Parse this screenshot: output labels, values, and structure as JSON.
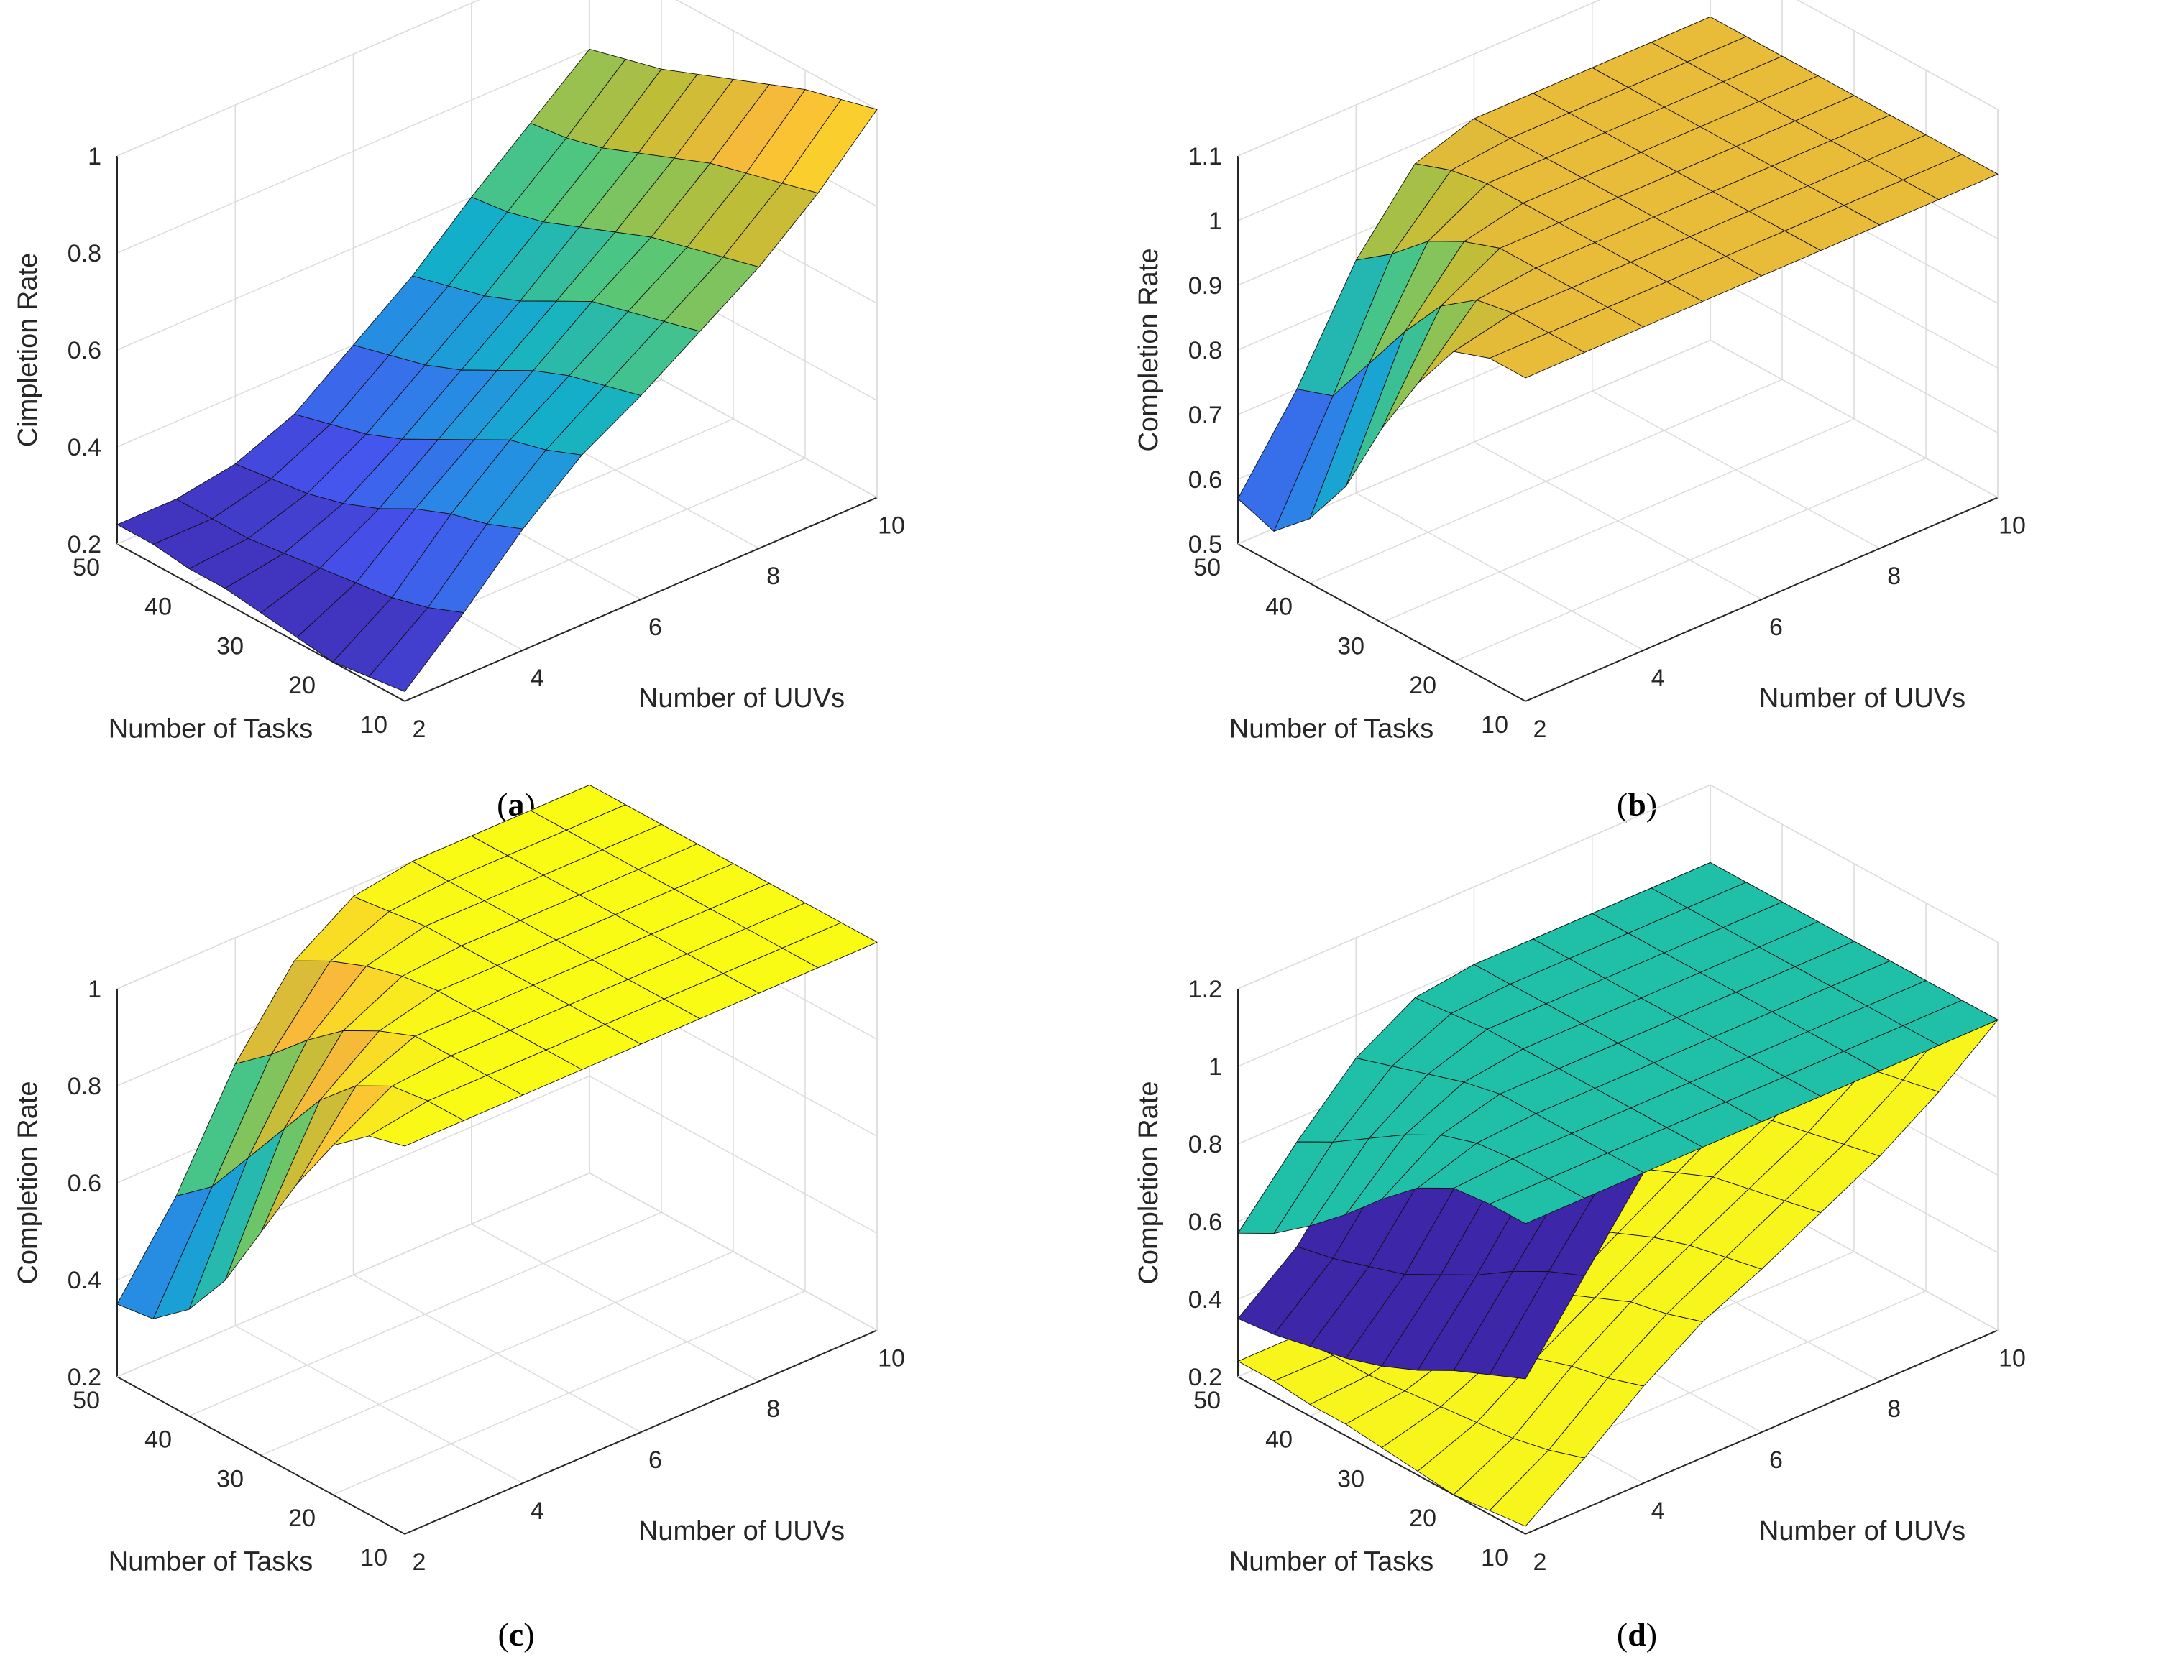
{
  "chart_data": [
    {
      "id": "a",
      "type": "surface",
      "caption": {
        "open": "(",
        "letter": "a",
        "close": ")"
      },
      "xlabel": "Number of UUVs",
      "ylabel": "Number of Tasks",
      "zlabel": "Cimpletion Rate",
      "xlim": [
        2,
        10
      ],
      "ylim": [
        10,
        50
      ],
      "zlim": [
        0.2,
        1.0
      ],
      "xticks": [
        2,
        4,
        6,
        8,
        10
      ],
      "yticks": [
        10,
        20,
        30,
        40,
        50
      ],
      "zticks": [
        "0.2",
        "0.4",
        "0.6",
        "0.8",
        "1"
      ],
      "grid": true,
      "x": [
        2,
        3,
        4,
        5,
        6,
        7,
        8,
        9,
        10
      ],
      "y": [
        10,
        15,
        20,
        25,
        30,
        35,
        40,
        45,
        50
      ],
      "surfaces": [
        {
          "name": "completion",
          "colormap": "parula",
          "z": [
            [
              0.22,
              0.33,
              0.45,
              0.55,
              0.62,
              0.7,
              0.78,
              0.88,
              1.0
            ],
            [
              0.21,
              0.3,
              0.42,
              0.52,
              0.6,
              0.68,
              0.76,
              0.86,
              0.98
            ],
            [
              0.2,
              0.28,
              0.4,
              0.5,
              0.58,
              0.66,
              0.74,
              0.84,
              0.96
            ],
            [
              0.21,
              0.27,
              0.37,
              0.46,
              0.55,
              0.64,
              0.72,
              0.82,
              0.93
            ],
            [
              0.22,
              0.26,
              0.33,
              0.42,
              0.51,
              0.6,
              0.69,
              0.79,
              0.9
            ],
            [
              0.23,
              0.25,
              0.3,
              0.38,
              0.47,
              0.56,
              0.66,
              0.76,
              0.87
            ],
            [
              0.23,
              0.24,
              0.28,
              0.35,
              0.44,
              0.53,
              0.63,
              0.73,
              0.84
            ],
            [
              0.24,
              0.24,
              0.27,
              0.33,
              0.42,
              0.51,
              0.61,
              0.71,
              0.82
            ],
            [
              0.24,
              0.24,
              0.26,
              0.31,
              0.4,
              0.49,
              0.6,
              0.7,
              0.8
            ]
          ]
        }
      ]
    },
    {
      "id": "b",
      "type": "surface",
      "caption": {
        "open": "(",
        "letter": "b",
        "close": ")"
      },
      "xlabel": "Number of UUVs",
      "ylabel": "Number of Tasks",
      "zlabel": "Completion Rate",
      "xlim": [
        2,
        10
      ],
      "ylim": [
        10,
        50
      ],
      "zlim": [
        0.5,
        1.1
      ],
      "xticks": [
        2,
        4,
        6,
        8,
        10
      ],
      "yticks": [
        10,
        20,
        30,
        40,
        50
      ],
      "zticks": [
        "0.5",
        "0.6",
        "0.7",
        "0.8",
        "0.9",
        "1",
        "1.1"
      ],
      "grid": true,
      "x": [
        2,
        3,
        4,
        5,
        6,
        7,
        8,
        9,
        10
      ],
      "y": [
        10,
        15,
        20,
        25,
        30,
        35,
        40,
        45,
        50
      ],
      "surfaces": [
        {
          "name": "completion",
          "colormap": "parula",
          "z": [
            [
              1.0,
              1.0,
              1.0,
              1.0,
              1.0,
              1.0,
              1.0,
              1.0,
              1.0
            ],
            [
              1.0,
              1.0,
              1.0,
              1.0,
              1.0,
              1.0,
              1.0,
              1.0,
              1.0
            ],
            [
              0.98,
              1.0,
              1.0,
              1.0,
              1.0,
              1.0,
              1.0,
              1.0,
              1.0
            ],
            [
              0.9,
              0.99,
              1.0,
              1.0,
              1.0,
              1.0,
              1.0,
              1.0,
              1.0
            ],
            [
              0.8,
              0.95,
              1.0,
              1.0,
              1.0,
              1.0,
              1.0,
              1.0,
              1.0
            ],
            [
              0.68,
              0.88,
              0.98,
              1.0,
              1.0,
              1.0,
              1.0,
              1.0,
              1.0
            ],
            [
              0.6,
              0.8,
              0.95,
              1.0,
              1.0,
              1.0,
              1.0,
              1.0,
              1.0
            ],
            [
              0.55,
              0.72,
              0.9,
              0.99,
              1.0,
              1.0,
              1.0,
              1.0,
              1.0
            ],
            [
              0.57,
              0.7,
              0.86,
              0.97,
              1.0,
              1.0,
              1.0,
              1.0,
              1.0
            ]
          ]
        }
      ]
    },
    {
      "id": "c",
      "type": "surface",
      "caption": {
        "open": "(",
        "letter": "c",
        "close": ")"
      },
      "xlabel": "Number of UUVs",
      "ylabel": "Number of Tasks",
      "zlabel": "Completion Rate",
      "xlim": [
        2,
        10
      ],
      "ylim": [
        10,
        50
      ],
      "zlim": [
        0.2,
        1.0
      ],
      "xticks": [
        2,
        4,
        6,
        8,
        10
      ],
      "yticks": [
        10,
        20,
        30,
        40,
        50
      ],
      "zticks": [
        "0.2",
        "0.4",
        "0.6",
        "0.8",
        "1"
      ],
      "grid": true,
      "x": [
        2,
        3,
        4,
        5,
        6,
        7,
        8,
        9,
        10
      ],
      "y": [
        10,
        15,
        20,
        25,
        30,
        35,
        40,
        45,
        50
      ],
      "surfaces": [
        {
          "name": "completion",
          "colormap": "parula",
          "z": [
            [
              1.0,
              1.0,
              1.0,
              1.0,
              1.0,
              1.0,
              1.0,
              1.0,
              1.0
            ],
            [
              0.98,
              1.0,
              1.0,
              1.0,
              1.0,
              1.0,
              1.0,
              1.0,
              1.0
            ],
            [
              0.92,
              0.99,
              1.0,
              1.0,
              1.0,
              1.0,
              1.0,
              1.0,
              1.0
            ],
            [
              0.8,
              0.95,
              1.0,
              1.0,
              1.0,
              1.0,
              1.0,
              1.0,
              1.0
            ],
            [
              0.66,
              0.88,
              0.97,
              1.0,
              1.0,
              1.0,
              1.0,
              1.0,
              1.0
            ],
            [
              0.52,
              0.78,
              0.93,
              0.99,
              1.0,
              1.0,
              1.0,
              1.0,
              1.0
            ],
            [
              0.42,
              0.68,
              0.87,
              0.97,
              1.0,
              1.0,
              1.0,
              1.0,
              1.0
            ],
            [
              0.36,
              0.58,
              0.8,
              0.94,
              0.99,
              1.0,
              1.0,
              1.0,
              1.0
            ],
            [
              0.35,
              0.52,
              0.74,
              0.9,
              0.98,
              1.0,
              1.0,
              1.0,
              1.0
            ]
          ]
        }
      ]
    },
    {
      "id": "d",
      "type": "surface",
      "caption": {
        "open": "(",
        "letter": "d",
        "close": ")"
      },
      "xlabel": "Number of UUVs",
      "ylabel": "Number of Tasks",
      "zlabel": "Completion Rate",
      "xlim": [
        2,
        10
      ],
      "ylim": [
        10,
        50
      ],
      "zlim": [
        0.2,
        1.2
      ],
      "xticks": [
        2,
        4,
        6,
        8,
        10
      ],
      "yticks": [
        10,
        20,
        30,
        40,
        50
      ],
      "zticks": [
        "0.2",
        "0.4",
        "0.6",
        "0.8",
        "1",
        "1.2"
      ],
      "grid": true,
      "x": [
        2,
        3,
        4,
        5,
        6,
        7,
        8,
        9,
        10
      ],
      "y": [
        10,
        15,
        20,
        25,
        30,
        35,
        40,
        45,
        50
      ],
      "surfaces": [
        {
          "name": "yellow-surface",
          "color": "#f8f51c",
          "z": [
            [
              0.22,
              0.33,
              0.45,
              0.55,
              0.62,
              0.7,
              0.78,
              0.88,
              1.0
            ],
            [
              0.21,
              0.3,
              0.42,
              0.52,
              0.6,
              0.68,
              0.76,
              0.86,
              0.98
            ],
            [
              0.2,
              0.28,
              0.4,
              0.5,
              0.58,
              0.66,
              0.74,
              0.84,
              0.96
            ],
            [
              0.21,
              0.27,
              0.37,
              0.46,
              0.55,
              0.64,
              0.72,
              0.82,
              0.93
            ],
            [
              0.22,
              0.26,
              0.33,
              0.42,
              0.51,
              0.6,
              0.69,
              0.79,
              0.9
            ],
            [
              0.23,
              0.25,
              0.3,
              0.38,
              0.47,
              0.56,
              0.66,
              0.76,
              0.87
            ],
            [
              0.23,
              0.24,
              0.28,
              0.35,
              0.44,
              0.53,
              0.63,
              0.73,
              0.84
            ],
            [
              0.24,
              0.24,
              0.27,
              0.33,
              0.42,
              0.51,
              0.61,
              0.71,
              0.82
            ],
            [
              0.24,
              0.24,
              0.26,
              0.31,
              0.4,
              0.49,
              0.6,
              0.7,
              0.8
            ]
          ]
        },
        {
          "name": "purple-surface",
          "color": "#3e26a8",
          "z": [
            [
              0.6,
              0.8,
              1.0,
              1.0,
              1.0,
              1.0,
              1.0,
              1.0,
              1.0
            ],
            [
              0.56,
              0.76,
              0.95,
              1.0,
              1.0,
              1.0,
              1.0,
              1.0,
              1.0
            ],
            [
              0.52,
              0.71,
              0.9,
              1.0,
              1.0,
              1.0,
              1.0,
              1.0,
              1.0
            ],
            [
              0.47,
              0.65,
              0.85,
              0.98,
              1.0,
              1.0,
              1.0,
              1.0,
              1.0
            ],
            [
              0.43,
              0.6,
              0.8,
              0.95,
              1.0,
              1.0,
              1.0,
              1.0,
              1.0
            ],
            [
              0.4,
              0.55,
              0.75,
              0.92,
              1.0,
              1.0,
              1.0,
              1.0,
              1.0
            ],
            [
              0.38,
              0.52,
              0.71,
              0.9,
              0.99,
              1.0,
              1.0,
              1.0,
              1.0
            ],
            [
              0.36,
              0.49,
              0.68,
              0.88,
              0.98,
              1.0,
              1.0,
              1.0,
              1.0
            ],
            [
              0.35,
              0.47,
              0.66,
              0.86,
              0.97,
              1.0,
              1.0,
              1.0,
              1.0
            ]
          ]
        },
        {
          "name": "teal-surface",
          "color": "#1fbfa8",
          "z": [
            [
              1.0,
              1.0,
              1.0,
              1.0,
              1.0,
              1.0,
              1.0,
              1.0,
              1.0
            ],
            [
              1.0,
              1.0,
              1.0,
              1.0,
              1.0,
              1.0,
              1.0,
              1.0,
              1.0
            ],
            [
              0.99,
              1.0,
              1.0,
              1.0,
              1.0,
              1.0,
              1.0,
              1.0,
              1.0
            ],
            [
              0.94,
              0.99,
              1.0,
              1.0,
              1.0,
              1.0,
              1.0,
              1.0,
              1.0
            ],
            [
              0.86,
              0.96,
              1.0,
              1.0,
              1.0,
              1.0,
              1.0,
              1.0,
              1.0
            ],
            [
              0.77,
              0.91,
              0.98,
              1.0,
              1.0,
              1.0,
              1.0,
              1.0,
              1.0
            ],
            [
              0.69,
              0.85,
              0.95,
              1.0,
              1.0,
              1.0,
              1.0,
              1.0,
              1.0
            ],
            [
              0.62,
              0.79,
              0.92,
              0.99,
              1.0,
              1.0,
              1.0,
              1.0,
              1.0
            ],
            [
              0.57,
              0.74,
              0.89,
              0.98,
              1.0,
              1.0,
              1.0,
              1.0,
              1.0
            ]
          ]
        }
      ]
    }
  ]
}
